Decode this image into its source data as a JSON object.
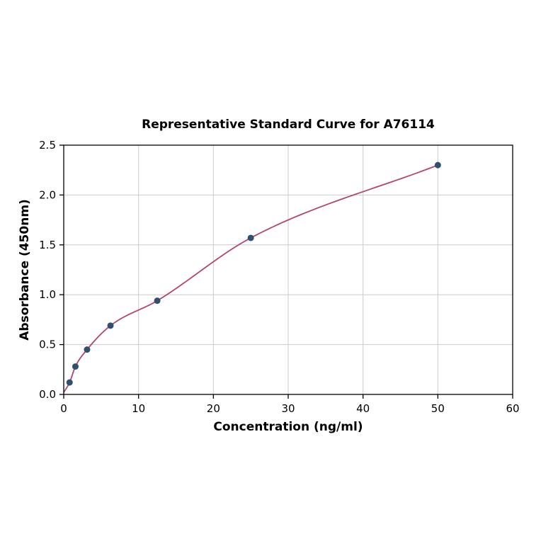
{
  "chart_data": {
    "type": "scatter",
    "title": "Representative Standard Curve for A76114",
    "xlabel": "Concentration (ng/ml)",
    "ylabel": "Absorbance (450nm)",
    "xlim": [
      0,
      60
    ],
    "ylim": [
      0,
      2.5
    ],
    "x_ticks": [
      0,
      10,
      20,
      30,
      40,
      50,
      60
    ],
    "x_tick_labels": [
      "0",
      "10",
      "20",
      "30",
      "40",
      "50",
      "60"
    ],
    "y_ticks": [
      0.0,
      0.5,
      1.0,
      1.5,
      2.0,
      2.5
    ],
    "y_tick_labels": [
      "0.0",
      "0.5",
      "1.0",
      "1.5",
      "2.0",
      "2.5"
    ],
    "grid": true,
    "legend": "none",
    "points": [
      {
        "x": 0.78,
        "y": 0.12
      },
      {
        "x": 1.56,
        "y": 0.28
      },
      {
        "x": 3.12,
        "y": 0.45
      },
      {
        "x": 6.25,
        "y": 0.69
      },
      {
        "x": 12.5,
        "y": 0.94
      },
      {
        "x": 25,
        "y": 1.57
      },
      {
        "x": 50,
        "y": 2.3
      }
    ],
    "curve_origin": {
      "x": 0,
      "y": 0.02
    },
    "colors": {
      "curve": "#b5446e",
      "point": "#31506e",
      "grid": "#cccccc",
      "axis": "#000000",
      "background": "#ffffff"
    }
  }
}
